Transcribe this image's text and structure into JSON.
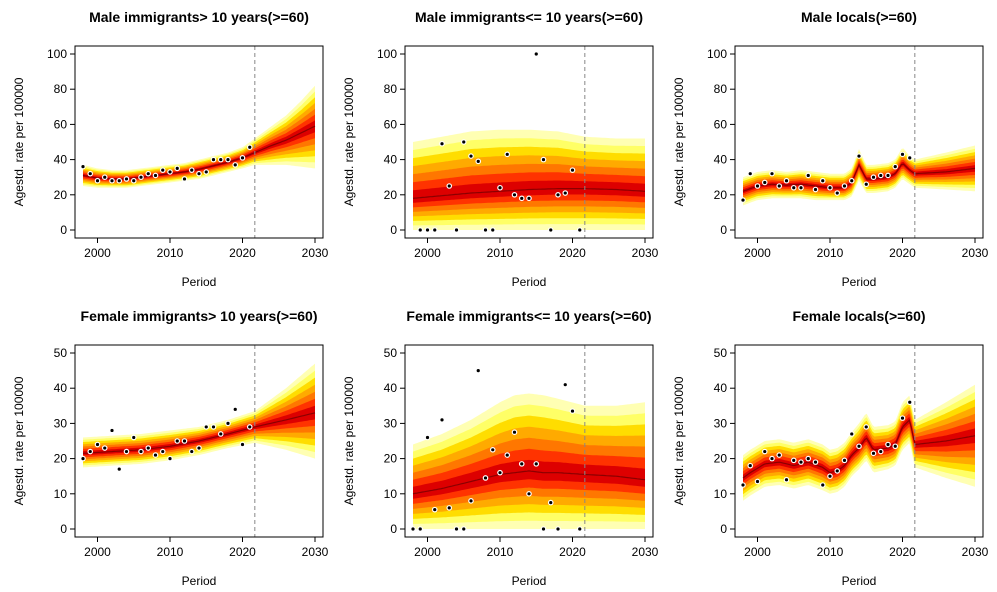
{
  "chart_data": [
    {
      "type": "line",
      "title": "Male immigrants> 10 years(>=60)",
      "xlabel": "Period",
      "ylabel": "Agestd. rate per 100000",
      "xlim": [
        1998,
        2030
      ],
      "ylim": [
        0,
        100
      ],
      "xticks": [
        2000,
        2010,
        2020,
        2030
      ],
      "yticks": [
        0,
        20,
        40,
        60,
        80,
        100
      ],
      "forecast_start": 2021.7,
      "fan_colors": [
        "#ffffb3",
        "#ffff66",
        "#ffdd00",
        "#ffaa00",
        "#ff7700",
        "#ff3300",
        "#dd0000"
      ],
      "median": {
        "x": [
          1998,
          2000,
          2002,
          2004,
          2006,
          2008,
          2010,
          2012,
          2014,
          2016,
          2018,
          2020,
          2021.7,
          2024,
          2026,
          2028,
          2030
        ],
        "y": [
          31,
          29.5,
          29,
          29,
          30,
          31,
          32,
          33,
          34.5,
          36.5,
          38.5,
          41,
          44,
          48,
          51,
          55,
          59
        ]
      },
      "band": {
        "x": [
          1998,
          2000,
          2002,
          2004,
          2006,
          2008,
          2010,
          2012,
          2014,
          2016,
          2018,
          2020,
          2021.7,
          2024,
          2026,
          2028,
          2030
        ],
        "lower": [
          25,
          24,
          24,
          24,
          25,
          26,
          27,
          28,
          29,
          31,
          33,
          35,
          37,
          37,
          37,
          36,
          35
        ],
        "upper": [
          37,
          35,
          34,
          34,
          35,
          36,
          37,
          38,
          40,
          42,
          44,
          47,
          52,
          59,
          65,
          73,
          82
        ]
      },
      "observed": {
        "x": [
          1998,
          1999,
          2000,
          2001,
          2002,
          2003,
          2004,
          2005,
          2006,
          2007,
          2008,
          2009,
          2010,
          2011,
          2012,
          2013,
          2014,
          2015,
          2016,
          2017,
          2018,
          2019,
          2020,
          2021
        ],
        "y": [
          36,
          32,
          28,
          30,
          28,
          28,
          29,
          28,
          30,
          32,
          31,
          34,
          33,
          35,
          29,
          34,
          32,
          33,
          40,
          40,
          40,
          37,
          41,
          47
        ]
      }
    },
    {
      "type": "line",
      "title": "Male immigrants<= 10 years(>=60)",
      "xlabel": "Period",
      "ylabel": "Agestd. rate per 100000",
      "xlim": [
        1998,
        2030
      ],
      "ylim": [
        0,
        100
      ],
      "xticks": [
        2000,
        2010,
        2020,
        2030
      ],
      "yticks": [
        0,
        20,
        40,
        60,
        80,
        100
      ],
      "forecast_start": 2021.7,
      "fan_colors": [
        "#ffffb3",
        "#ffff66",
        "#ffdd00",
        "#ffaa00",
        "#ff7700",
        "#ff3300",
        "#dd0000"
      ],
      "median": {
        "x": [
          1998,
          2002,
          2006,
          2010,
          2014,
          2018,
          2021.7,
          2026,
          2030
        ],
        "y": [
          18,
          19.5,
          21,
          22,
          23,
          23.5,
          23.5,
          23,
          22
        ]
      },
      "band": {
        "x": [
          1998,
          2002,
          2006,
          2010,
          2014,
          2018,
          2021.7,
          2026,
          2030
        ],
        "lower": [
          0,
          0,
          0,
          0,
          0,
          0,
          0,
          0,
          0
        ],
        "upper": [
          50,
          53,
          56,
          57,
          57,
          56,
          53,
          52,
          52
        ]
      },
      "observed": {
        "x": [
          1999,
          2000,
          2001,
          2002,
          2003,
          2004,
          2005,
          2006,
          2007,
          2008,
          2009,
          2010,
          2011,
          2012,
          2013,
          2014,
          2015,
          2016,
          2017,
          2018,
          2019,
          2020,
          2021
        ],
        "y": [
          0,
          0,
          0,
          49,
          25,
          0,
          50,
          42,
          39,
          0,
          0,
          24,
          43,
          20,
          18,
          18,
          100,
          40,
          0,
          20,
          21,
          34,
          0
        ]
      }
    },
    {
      "type": "line",
      "title": "Male locals(>=60)",
      "xlabel": "Period",
      "ylabel": "Agestd. rate per 100000",
      "xlim": [
        1998,
        2030
      ],
      "ylim": [
        0,
        100
      ],
      "xticks": [
        2000,
        2010,
        2020,
        2030
      ],
      "yticks": [
        0,
        20,
        40,
        60,
        80,
        100
      ],
      "forecast_start": 2021.7,
      "fan_colors": [
        "#ffffb3",
        "#ffff66",
        "#ffdd00",
        "#ffaa00",
        "#ff7700",
        "#ff3300",
        "#dd0000"
      ],
      "median": {
        "x": [
          1998,
          2000,
          2002,
          2004,
          2006,
          2008,
          2010,
          2012,
          2013,
          2014,
          2015,
          2016,
          2018,
          2019,
          2020,
          2021,
          2021.7,
          2026,
          2030
        ],
        "y": [
          22,
          25,
          26,
          25.5,
          26,
          25,
          24,
          24,
          27,
          37,
          29,
          29,
          30,
          32,
          38,
          34,
          32,
          33,
          35
        ]
      },
      "band": {
        "x": [
          1998,
          2000,
          2002,
          2004,
          2006,
          2008,
          2010,
          2012,
          2013,
          2014,
          2015,
          2016,
          2018,
          2019,
          2020,
          2021,
          2021.7,
          2026,
          2030
        ],
        "lower": [
          14,
          17,
          18,
          18,
          18,
          17,
          17,
          17,
          19,
          28,
          21,
          21,
          22,
          24,
          29,
          26,
          24,
          23,
          22
        ],
        "upper": [
          30,
          33,
          34,
          33,
          34,
          33,
          32,
          32,
          35,
          46,
          37,
          37,
          38,
          40,
          47,
          42,
          40,
          44,
          48
        ]
      },
      "observed": {
        "x": [
          1998,
          1999,
          2000,
          2001,
          2002,
          2003,
          2004,
          2005,
          2006,
          2007,
          2008,
          2009,
          2010,
          2011,
          2012,
          2013,
          2014,
          2015,
          2016,
          2017,
          2018,
          2019,
          2020,
          2021
        ],
        "y": [
          17,
          32,
          25,
          27,
          32,
          25,
          28,
          24,
          24,
          31,
          23,
          28,
          24,
          21,
          25,
          28,
          42,
          26,
          30,
          31,
          31,
          36,
          43,
          41
        ]
      }
    },
    {
      "type": "line",
      "title": "Female immigrants> 10 years(>=60)",
      "xlabel": "Period",
      "ylabel": "Agestd. rate per 100000",
      "xlim": [
        1998,
        2030
      ],
      "ylim": [
        0,
        50
      ],
      "xticks": [
        2000,
        2010,
        2020,
        2030
      ],
      "yticks": [
        0,
        10,
        20,
        30,
        40,
        50
      ],
      "forecast_start": 2021.7,
      "fan_colors": [
        "#ffffb3",
        "#ffff66",
        "#ffdd00",
        "#ffaa00",
        "#ff7700",
        "#ff3300",
        "#dd0000"
      ],
      "median": {
        "x": [
          1998,
          2002,
          2006,
          2010,
          2014,
          2018,
          2021.7,
          2026,
          2030
        ],
        "y": [
          21.5,
          22,
          22.5,
          23.5,
          25,
          27,
          29,
          31,
          33
        ]
      },
      "band": {
        "x": [
          1998,
          2002,
          2006,
          2010,
          2014,
          2018,
          2021.7,
          2026,
          2030
        ],
        "lower": [
          17.5,
          18,
          18.5,
          19.5,
          21,
          23,
          24.5,
          22.5,
          20
        ],
        "upper": [
          26,
          26.5,
          27,
          28,
          29,
          31,
          33.5,
          40,
          47
        ]
      },
      "observed": {
        "x": [
          1998,
          1999,
          2000,
          2001,
          2002,
          2003,
          2004,
          2005,
          2006,
          2007,
          2008,
          2009,
          2010,
          2011,
          2012,
          2013,
          2014,
          2015,
          2016,
          2017,
          2018,
          2019,
          2020,
          2021
        ],
        "y": [
          20,
          22,
          24,
          23,
          28,
          17,
          22,
          26,
          22,
          23,
          21,
          22,
          20,
          25,
          25,
          22,
          23,
          29,
          29,
          27,
          30,
          34,
          24,
          29
        ]
      }
    },
    {
      "type": "line",
      "title": "Female immigrants<= 10 years(>=60)",
      "xlabel": "Period",
      "ylabel": "Agestd. rate per 100000",
      "xlim": [
        1998,
        2030
      ],
      "ylim": [
        0,
        50
      ],
      "xticks": [
        2000,
        2010,
        2020,
        2030
      ],
      "yticks": [
        0,
        10,
        20,
        30,
        40,
        50
      ],
      "forecast_start": 2021.7,
      "fan_colors": [
        "#ffffb3",
        "#ffff66",
        "#ffdd00",
        "#ffaa00",
        "#ff7700",
        "#ff3300",
        "#dd0000"
      ],
      "median": {
        "x": [
          1998,
          2002,
          2006,
          2010,
          2012,
          2014,
          2016,
          2018,
          2021.7,
          2026,
          2030
        ],
        "y": [
          10,
          11.5,
          13.5,
          15.5,
          16,
          16.5,
          16,
          16,
          15.5,
          15,
          14
        ]
      },
      "band": {
        "x": [
          1998,
          2002,
          2006,
          2010,
          2012,
          2014,
          2016,
          2018,
          2021.7,
          2026,
          2030
        ],
        "lower": [
          0,
          0,
          0,
          0,
          0,
          0,
          0,
          0,
          0,
          0,
          0
        ],
        "upper": [
          24,
          27,
          31,
          36,
          38,
          38.5,
          38,
          37,
          35,
          35,
          36
        ]
      },
      "observed": {
        "x": [
          1998,
          1999,
          2000,
          2001,
          2002,
          2003,
          2004,
          2005,
          2006,
          2007,
          2008,
          2009,
          2010,
          2011,
          2012,
          2013,
          2014,
          2015,
          2016,
          2017,
          2018,
          2019,
          2020,
          2021
        ],
        "y": [
          0,
          0,
          26,
          5.5,
          31,
          6,
          0,
          0,
          8,
          45,
          14.5,
          22.5,
          16,
          21,
          27.5,
          18.5,
          10,
          18.5,
          0,
          7.5,
          0,
          41,
          33.5,
          0
        ]
      }
    },
    {
      "type": "line",
      "title": "Female locals(>=60)",
      "xlabel": "Period",
      "ylabel": "Agestd. rate per 100000",
      "xlim": [
        1998,
        2030
      ],
      "ylim": [
        0,
        50
      ],
      "xticks": [
        2000,
        2010,
        2020,
        2030
      ],
      "yticks": [
        0,
        10,
        20,
        30,
        40,
        50
      ],
      "forecast_start": 2021.7,
      "fan_colors": [
        "#ffffb3",
        "#ffff66",
        "#ffdd00",
        "#ffaa00",
        "#ff7700",
        "#ff3300",
        "#dd0000"
      ],
      "median": {
        "x": [
          1998,
          1999,
          2001,
          2003,
          2005,
          2007,
          2009,
          2010,
          2011,
          2012,
          2013,
          2014,
          2015,
          2016,
          2018,
          2019,
          2020,
          2021,
          2021.7,
          2026,
          2030
        ],
        "y": [
          14.5,
          16,
          18.5,
          19,
          18,
          19,
          17.5,
          16,
          16.5,
          18,
          21,
          23,
          26,
          22.5,
          23,
          24,
          29,
          31,
          24,
          25,
          26.5
        ]
      },
      "band": {
        "x": [
          1998,
          1999,
          2001,
          2003,
          2005,
          2007,
          2009,
          2010,
          2011,
          2012,
          2013,
          2014,
          2015,
          2016,
          2018,
          2019,
          2020,
          2021,
          2021.7,
          2026,
          2030
        ],
        "lower": [
          8,
          9.5,
          12,
          12.5,
          11.5,
          12.5,
          11,
          10,
          10.5,
          12,
          15,
          17,
          19.5,
          16,
          17,
          18,
          22.5,
          24.5,
          17.5,
          14.5,
          12
        ],
        "upper": [
          21,
          22.5,
          25,
          25.5,
          24.5,
          25.5,
          24,
          22.5,
          23,
          24.5,
          27.5,
          30,
          33,
          29,
          29.5,
          30.5,
          36,
          38,
          31,
          36,
          41
        ]
      },
      "observed": {
        "x": [
          1998,
          1999,
          2000,
          2001,
          2002,
          2003,
          2004,
          2005,
          2006,
          2007,
          2008,
          2009,
          2010,
          2011,
          2012,
          2013,
          2014,
          2015,
          2016,
          2017,
          2018,
          2019,
          2020,
          2021
        ],
        "y": [
          12.5,
          18,
          13.5,
          22,
          20,
          21,
          14,
          19.5,
          19,
          20,
          19,
          12.5,
          15,
          16.5,
          19.5,
          27,
          23.5,
          29,
          21.5,
          22,
          24,
          23.5,
          31.5,
          36
        ]
      }
    }
  ]
}
